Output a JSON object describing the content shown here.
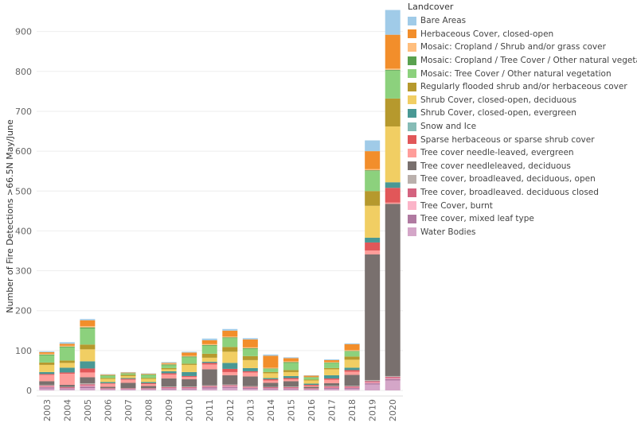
{
  "chart_data": {
    "type": "bar",
    "stacked": true,
    "title": "",
    "xlabel": "",
    "ylabel": "Number of Fire Detections >66.5N May/June",
    "ylim": [
      0,
      950
    ],
    "yticks": [
      0,
      100,
      200,
      300,
      400,
      500,
      600,
      700,
      800,
      900
    ],
    "grid": true,
    "legend_title": "Landcover",
    "legend_position": "right",
    "categories": [
      "2003",
      "2004",
      "2005",
      "2006",
      "2007",
      "2008",
      "2009",
      "2010",
      "2011",
      "2012",
      "2013",
      "2014",
      "2015",
      "2016",
      "2017",
      "2018",
      "2019",
      "2020"
    ],
    "series": [
      {
        "name": "Water Bodies",
        "color": "#d4a6c8",
        "values": [
          5,
          3,
          6,
          2,
          2,
          2,
          3,
          3,
          5,
          6,
          4,
          3,
          3,
          2,
          4,
          4,
          15,
          25
        ]
      },
      {
        "name": "Tree cover, mixed leaf type",
        "color": "#b07aa1",
        "values": [
          3,
          2,
          4,
          1,
          1,
          1,
          2,
          2,
          3,
          3,
          2,
          2,
          2,
          1,
          2,
          2,
          3,
          4
        ]
      },
      {
        "name": "Tree Cover, burnt",
        "color": "#fbb4c8",
        "values": [
          2,
          1,
          2,
          1,
          1,
          1,
          1,
          1,
          1,
          2,
          1,
          1,
          1,
          1,
          1,
          1,
          2,
          2
        ]
      },
      {
        "name": "Tree cover, broadleaved. deciduous closed",
        "color": "#d4637f",
        "values": [
          2,
          2,
          3,
          1,
          1,
          1,
          2,
          2,
          2,
          2,
          2,
          2,
          2,
          1,
          3,
          3,
          3,
          3
        ]
      },
      {
        "name": "Tree cover, broadleaved, deciduous, open",
        "color": "#bab0ac",
        "values": [
          2,
          1,
          3,
          1,
          1,
          1,
          2,
          2,
          2,
          2,
          2,
          1,
          2,
          1,
          2,
          2,
          3,
          2
        ]
      },
      {
        "name": "Tree cover needleleaved, deciduous",
        "color": "#79706e",
        "values": [
          9,
          5,
          15,
          3,
          13,
          5,
          20,
          18,
          40,
          23,
          24,
          10,
          13,
          3,
          6,
          27,
          315,
          432
        ]
      },
      {
        "name": "Tree cover needle-leaved, evergreen",
        "color": "#ff9d9a",
        "values": [
          16,
          28,
          12,
          8,
          8,
          5,
          10,
          6,
          12,
          8,
          10,
          6,
          5,
          3,
          9,
          8,
          10,
          3
        ]
      },
      {
        "name": "Sparse herbaceous or sparse shrub cover",
        "color": "#e15759",
        "values": [
          2,
          3,
          10,
          1,
          2,
          2,
          3,
          2,
          4,
          8,
          3,
          3,
          3,
          2,
          3,
          4,
          20,
          37
        ]
      },
      {
        "name": "Snow and Ice",
        "color": "#86bcb6",
        "values": [
          0,
          0,
          0,
          0,
          0,
          0,
          0,
          0,
          0,
          0,
          0,
          0,
          0,
          0,
          0,
          0,
          0,
          0
        ]
      },
      {
        "name": "Shrub Cover, closed-open, evergreen",
        "color": "#499894",
        "values": [
          5,
          12,
          18,
          3,
          2,
          3,
          5,
          10,
          3,
          15,
          8,
          3,
          5,
          3,
          8,
          6,
          12,
          14
        ]
      },
      {
        "name": "Shrub Cover, closed-open, deciduous",
        "color": "#f1ce63",
        "values": [
          18,
          12,
          30,
          8,
          5,
          8,
          5,
          18,
          10,
          28,
          20,
          12,
          10,
          8,
          15,
          20,
          80,
          140
        ]
      },
      {
        "name": "Regularly flooded shrub and/or herbaceous cover",
        "color": "#b6992d",
        "values": [
          6,
          6,
          12,
          2,
          3,
          2,
          3,
          3,
          10,
          12,
          10,
          3,
          5,
          2,
          3,
          8,
          37,
          70
        ]
      },
      {
        "name": "Mosaic: Tree Cover / Other natural vegetation",
        "color": "#8cd17d",
        "values": [
          18,
          33,
          40,
          6,
          3,
          8,
          7,
          16,
          20,
          22,
          18,
          8,
          18,
          5,
          13,
          13,
          50,
          70
        ]
      },
      {
        "name": "Mosaic: Cropland / Tree Cover / Other natural vegetation",
        "color": "#59a14f",
        "values": [
          2,
          2,
          3,
          1,
          1,
          1,
          2,
          2,
          2,
          2,
          2,
          1,
          2,
          1,
          1,
          1,
          2,
          2
        ]
      },
      {
        "name": "Mosaic: Cropland / Shrub and/or grass cover",
        "color": "#ffbe7d",
        "values": [
          2,
          2,
          3,
          1,
          1,
          1,
          2,
          2,
          2,
          2,
          2,
          2,
          2,
          1,
          1,
          2,
          3,
          3
        ]
      },
      {
        "name": "Herbaceous Cover, closed-open",
        "color": "#f28e2b",
        "values": [
          4,
          5,
          15,
          1,
          1,
          1,
          2,
          8,
          10,
          15,
          20,
          30,
          8,
          3,
          5,
          15,
          45,
          85
        ]
      },
      {
        "name": "Bare Areas",
        "color": "#a0cbe8",
        "values": [
          2,
          4,
          3,
          1,
          1,
          1,
          2,
          2,
          4,
          4,
          3,
          3,
          2,
          1,
          2,
          2,
          27,
          62
        ]
      }
    ]
  }
}
